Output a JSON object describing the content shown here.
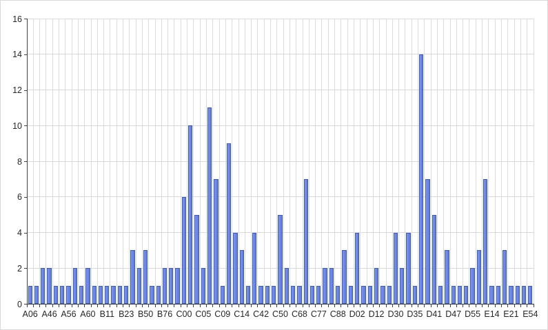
{
  "chart_data": {
    "type": "bar",
    "title": "",
    "xlabel": "",
    "ylabel": "",
    "legend": "none",
    "grid": "horizontal-major-and-vertical-category",
    "ylim": [
      0,
      16
    ],
    "y_ticks": [
      0,
      2,
      4,
      6,
      8,
      10,
      12,
      14,
      16
    ],
    "values": [
      1,
      1,
      2,
      2,
      1,
      1,
      1,
      2,
      1,
      2,
      1,
      1,
      1,
      1,
      1,
      1,
      3,
      2,
      3,
      1,
      1,
      2,
      2,
      2,
      6,
      10,
      5,
      2,
      11,
      7,
      1,
      9,
      4,
      3,
      1,
      4,
      1,
      1,
      1,
      5,
      2,
      1,
      1,
      7,
      1,
      1,
      2,
      2,
      1,
      3,
      1,
      4,
      1,
      1,
      2,
      1,
      1,
      4,
      2,
      4,
      1,
      14,
      7,
      5,
      1,
      3,
      1,
      1,
      1,
      2,
      3,
      7,
      1,
      1,
      3,
      1,
      1,
      1,
      1
    ],
    "x_tick_labels": [
      "A06",
      "A46",
      "A56",
      "A60",
      "B11",
      "B23",
      "B50",
      "B76",
      "C00",
      "C05",
      "C09",
      "C14",
      "C42",
      "C50",
      "C68",
      "C77",
      "C88",
      "D02",
      "D12",
      "D30",
      "D35",
      "D41",
      "D47",
      "D55",
      "E14",
      "E21",
      "E54"
    ],
    "x_label_start_index": 0,
    "x_label_every": 3
  },
  "colors": {
    "bar_fill": "#6d86e8",
    "bar_border": "#3b5abf",
    "gridline": "#d9d9d9",
    "axis": "#404040",
    "tick_text": "#262626",
    "background": "#ffffff",
    "frame_border": "#d9d9d9"
  }
}
